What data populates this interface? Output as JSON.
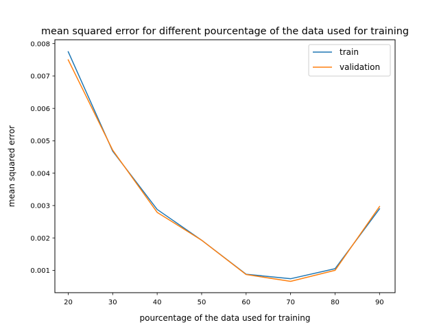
{
  "chart_data": {
    "type": "line",
    "title": "mean squared error for different pourcentage of the data used for training",
    "xlabel": "pourcentage of the data used for training",
    "ylabel": "mean squared error",
    "x": [
      20,
      30,
      40,
      50,
      60,
      70,
      80,
      90
    ],
    "xlim": [
      17,
      93.5
    ],
    "ylim": [
      0.00031,
      0.00812
    ],
    "xticks": [
      20,
      30,
      40,
      50,
      60,
      70,
      80,
      90
    ],
    "yticks": [
      0.001,
      0.002,
      0.003,
      0.004,
      0.005,
      0.006,
      0.007,
      0.008
    ],
    "ytick_labels": [
      "0.001",
      "0.002",
      "0.003",
      "0.004",
      "0.005",
      "0.006",
      "0.007",
      "0.008"
    ],
    "grid": false,
    "legend_position": "top-right",
    "series": [
      {
        "name": "train",
        "color": "#1f77b4",
        "values": [
          0.00775,
          0.00468,
          0.00288,
          0.00193,
          0.00088,
          0.00074,
          0.00105,
          0.0029
        ]
      },
      {
        "name": "validation",
        "color": "#ff7f0e",
        "values": [
          0.0075,
          0.00471,
          0.00279,
          0.00193,
          0.00087,
          0.00066,
          0.001,
          0.00297
        ]
      }
    ]
  }
}
